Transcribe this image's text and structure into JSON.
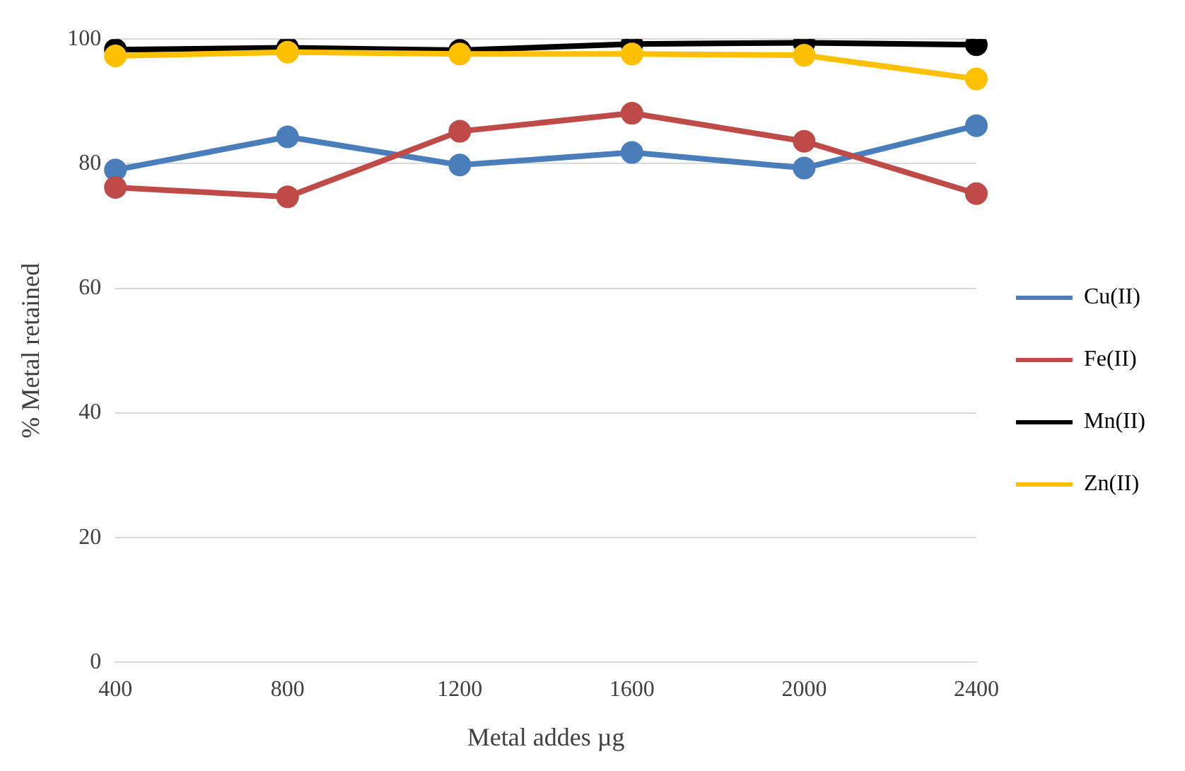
{
  "chart_data": {
    "type": "line",
    "xlabel": "Metal addes µg",
    "ylabel": "% Metal retained",
    "categories": [
      "400",
      "800",
      "1200",
      "1600",
      "2000",
      "2400"
    ],
    "series": [
      {
        "name": "Cu(II)",
        "color": "#4a7ebb",
        "values": [
          79.0,
          84.3,
          79.8,
          81.8,
          79.3,
          86.1
        ]
      },
      {
        "name": "Fe(II)",
        "color": "#be4b48",
        "values": [
          76.2,
          74.7,
          85.2,
          88.1,
          83.6,
          75.2
        ]
      },
      {
        "name": "Mn(II)",
        "color": "#000000",
        "values": [
          98.3,
          98.6,
          98.2,
          99.2,
          99.4,
          99.1
        ]
      },
      {
        "name": "Zn(II)",
        "color": "#ffc000",
        "values": [
          97.3,
          97.9,
          97.6,
          97.6,
          97.4,
          93.6
        ]
      }
    ],
    "ylim": [
      0,
      100
    ],
    "yticks": [
      0,
      20,
      40,
      60,
      80,
      100
    ],
    "grid": "y",
    "legend": "right",
    "marker": "circle",
    "line_style": "solid"
  }
}
